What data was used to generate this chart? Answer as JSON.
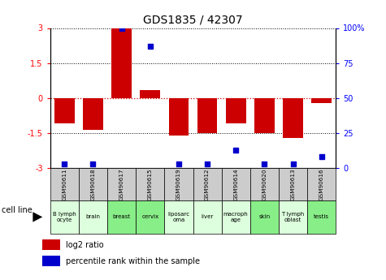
{
  "title": "GDS1835 / 42307",
  "samples": [
    "GSM90611",
    "GSM90618",
    "GSM90617",
    "GSM90615",
    "GSM90619",
    "GSM90612",
    "GSM90614",
    "GSM90620",
    "GSM90613",
    "GSM90616"
  ],
  "cell_lines": [
    "B lymph\nocyte",
    "brain",
    "breast",
    "cervix",
    "liposarc\noma",
    "liver",
    "macroph\nage",
    "skin",
    "T lymph\noblast",
    "testis"
  ],
  "cell_line_colors": [
    "#ddffdd",
    "#ddffdd",
    "#88ee88",
    "#88ee88",
    "#ddffdd",
    "#ddffdd",
    "#ddffdd",
    "#88ee88",
    "#ddffdd",
    "#88ee88"
  ],
  "log2_ratio": [
    -1.1,
    -1.35,
    3.0,
    0.35,
    -1.6,
    -1.5,
    -1.1,
    -1.5,
    -1.7,
    -0.2
  ],
  "percentile_rank": [
    3,
    3,
    100,
    87,
    3,
    3,
    13,
    3,
    3,
    8
  ],
  "ylim": [
    -3,
    3
  ],
  "yticks_left": [
    -3,
    -1.5,
    0,
    1.5,
    3
  ],
  "bar_color": "#cc0000",
  "dot_color": "#0000cc",
  "zero_line_color": "#cc0000",
  "sample_bg_color": "#cccccc",
  "legend_bar_label": "log2 ratio",
  "legend_dot_label": "percentile rank within the sample",
  "cell_line_label": "cell line"
}
